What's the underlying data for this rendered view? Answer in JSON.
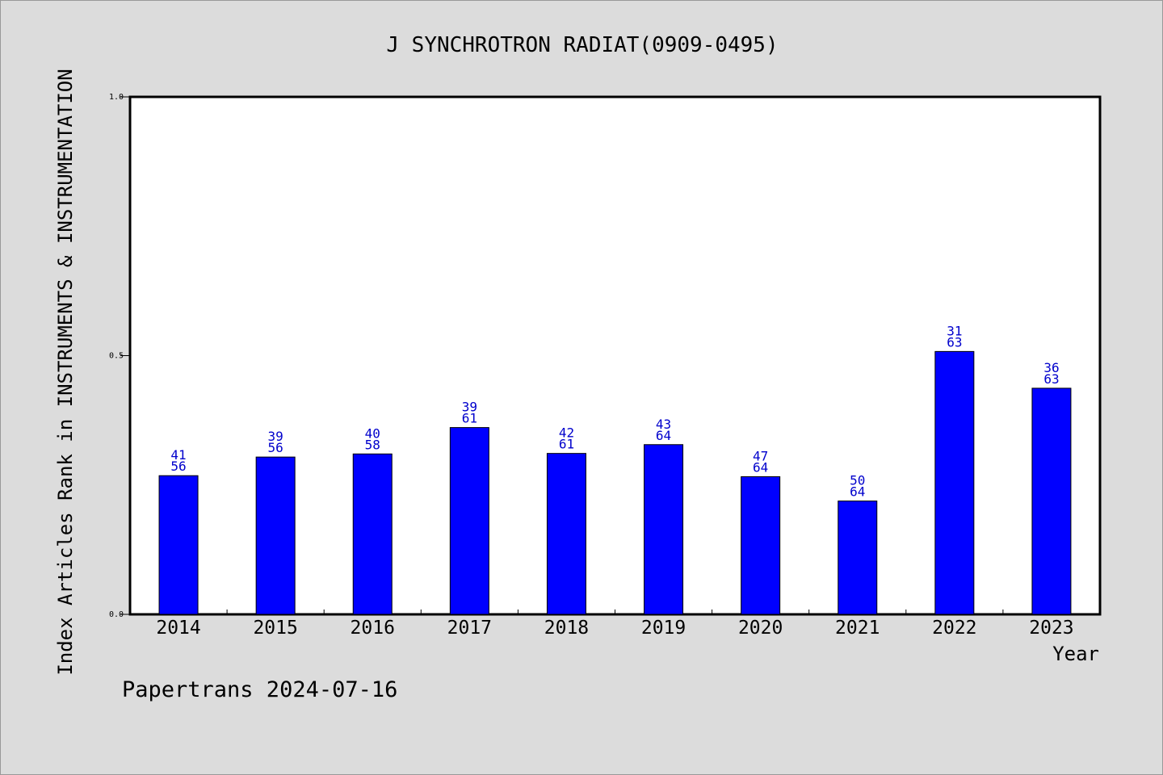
{
  "chart_data": {
    "type": "bar",
    "title": "J SYNCHROTRON RADIAT(0909-0495)",
    "xlabel": "Year",
    "ylabel": "Index Articles Rank in INSTRUMENTS & INSTRUMENTATION",
    "ylim": [
      0,
      1
    ],
    "yticks": [
      "0.0",
      "0.5",
      "1.0"
    ],
    "categories": [
      "2014",
      "2015",
      "2016",
      "2017",
      "2018",
      "2019",
      "2020",
      "2021",
      "2022",
      "2023"
    ],
    "values": [
      0.268,
      0.304,
      0.31,
      0.361,
      0.311,
      0.328,
      0.266,
      0.219,
      0.508,
      0.437
    ],
    "ranks": [
      "41",
      "39",
      "40",
      "39",
      "42",
      "43",
      "47",
      "50",
      "31",
      "36"
    ],
    "totals": [
      "56",
      "56",
      "58",
      "61",
      "61",
      "64",
      "64",
      "64",
      "63",
      "63"
    ],
    "bar_color": "#0000ff",
    "label_color": "#0000cc",
    "grid": false,
    "legend": "none"
  },
  "footer": "Papertrans 2024-07-16"
}
